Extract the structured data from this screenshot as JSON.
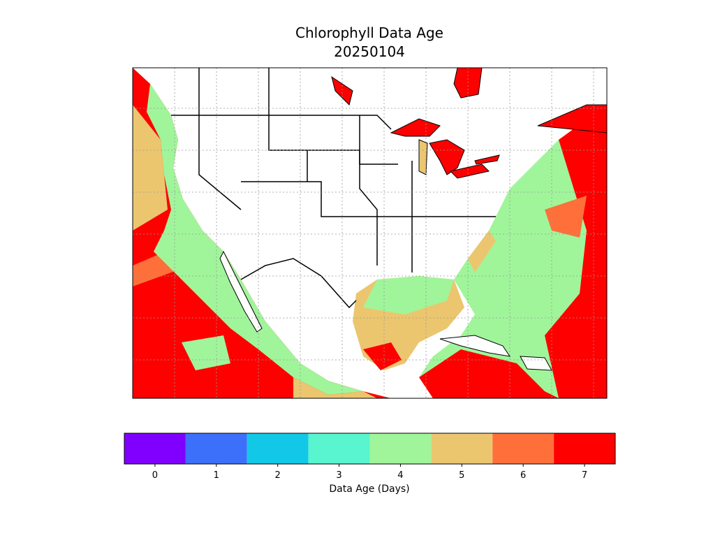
{
  "title": "Chlorophyll Data Age",
  "subtitle": "20250104",
  "colorbar": {
    "label": "Data Age (Days)",
    "ticks": [
      0,
      1,
      2,
      3,
      4,
      5,
      6,
      7
    ],
    "colors": [
      "#7f00ff",
      "#3c70fb",
      "#12c8e6",
      "#58f5cf",
      "#a0f59a",
      "#ebc66f",
      "#ff6f3a",
      "#ff0000"
    ]
  }
}
